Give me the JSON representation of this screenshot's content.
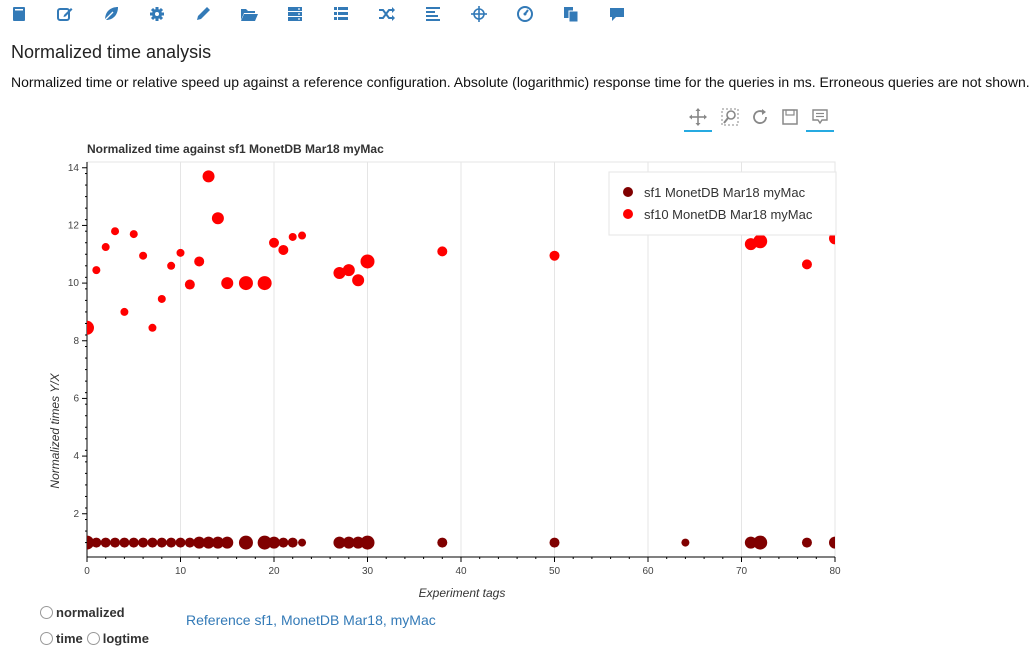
{
  "toolbar": {
    "icons": [
      "book-icon",
      "edit-icon",
      "leaf-icon",
      "cog-icon",
      "pencil-icon",
      "folder-open-icon",
      "server-icon",
      "list-icon",
      "shuffle-icon",
      "align-left-icon",
      "screenshot-icon",
      "dashboard-icon",
      "duplicate-icon",
      "comment-icon"
    ]
  },
  "page": {
    "title": "Normalized time analysis",
    "description": "Normalized time or relative speed up against a reference configuration. Absolute (logarithmic) response time for the queries in ms. Erroneous queries are not shown."
  },
  "plot_tools": [
    "pan-tool-icon",
    "box-zoom-tool-icon",
    "reset-tool-icon",
    "save-tool-icon",
    "hover-tool-icon"
  ],
  "colors": {
    "accent": "#337ab7",
    "series1": "#800000",
    "series2": "#ff0000",
    "active_tool": "#26aae1"
  },
  "chart_data": {
    "type": "scatter",
    "title": "Normalized time against sf1 MonetDB Mar18 myMac",
    "xlabel": "Experiment tags",
    "ylabel": "Normalized times Y/X",
    "xlim": [
      0,
      80
    ],
    "ylim": [
      0.5,
      14.2
    ],
    "xticks": [
      0,
      10,
      20,
      30,
      40,
      50,
      60,
      70,
      80
    ],
    "yticks": [
      2,
      4,
      6,
      8,
      10,
      12,
      14
    ],
    "grid": true,
    "legend_position": "top-right",
    "series": [
      {
        "name": "sf1 MonetDB Mar18 myMac",
        "color": "#800000",
        "points": [
          {
            "x": 0,
            "y": 1,
            "r": 7
          },
          {
            "x": 1,
            "y": 1,
            "r": 5
          },
          {
            "x": 2,
            "y": 1,
            "r": 5
          },
          {
            "x": 3,
            "y": 1,
            "r": 5
          },
          {
            "x": 4,
            "y": 1,
            "r": 5
          },
          {
            "x": 5,
            "y": 1,
            "r": 5
          },
          {
            "x": 6,
            "y": 1,
            "r": 5
          },
          {
            "x": 7,
            "y": 1,
            "r": 5
          },
          {
            "x": 8,
            "y": 1,
            "r": 5
          },
          {
            "x": 9,
            "y": 1,
            "r": 5
          },
          {
            "x": 10,
            "y": 1,
            "r": 5
          },
          {
            "x": 11,
            "y": 1,
            "r": 5
          },
          {
            "x": 12,
            "y": 1,
            "r": 6
          },
          {
            "x": 13,
            "y": 1,
            "r": 6
          },
          {
            "x": 14,
            "y": 1,
            "r": 6
          },
          {
            "x": 15,
            "y": 1,
            "r": 6
          },
          {
            "x": 17,
            "y": 1,
            "r": 7
          },
          {
            "x": 19,
            "y": 1,
            "r": 7
          },
          {
            "x": 20,
            "y": 1,
            "r": 6
          },
          {
            "x": 21,
            "y": 1,
            "r": 5
          },
          {
            "x": 22,
            "y": 1,
            "r": 5
          },
          {
            "x": 23,
            "y": 1,
            "r": 4
          },
          {
            "x": 27,
            "y": 1,
            "r": 6
          },
          {
            "x": 28,
            "y": 1,
            "r": 6
          },
          {
            "x": 29,
            "y": 1,
            "r": 6
          },
          {
            "x": 30,
            "y": 1,
            "r": 7
          },
          {
            "x": 38,
            "y": 1,
            "r": 5
          },
          {
            "x": 50,
            "y": 1,
            "r": 5
          },
          {
            "x": 64,
            "y": 1,
            "r": 4
          },
          {
            "x": 71,
            "y": 1,
            "r": 6
          },
          {
            "x": 72,
            "y": 1,
            "r": 7
          },
          {
            "x": 77,
            "y": 1,
            "r": 5
          },
          {
            "x": 80,
            "y": 1,
            "r": 6
          }
        ]
      },
      {
        "name": "sf10 MonetDB Mar18 myMac",
        "color": "#ff0000",
        "points": [
          {
            "x": 0,
            "y": 8.45,
            "r": 7
          },
          {
            "x": 1,
            "y": 10.45,
            "r": 4
          },
          {
            "x": 2,
            "y": 11.25,
            "r": 4
          },
          {
            "x": 3,
            "y": 11.8,
            "r": 4
          },
          {
            "x": 4,
            "y": 9.0,
            "r": 4
          },
          {
            "x": 5,
            "y": 11.7,
            "r": 4
          },
          {
            "x": 6,
            "y": 10.95,
            "r": 4
          },
          {
            "x": 7,
            "y": 8.45,
            "r": 4
          },
          {
            "x": 8,
            "y": 9.45,
            "r": 4
          },
          {
            "x": 9,
            "y": 10.6,
            "r": 4
          },
          {
            "x": 10,
            "y": 11.05,
            "r": 4
          },
          {
            "x": 11,
            "y": 9.95,
            "r": 5
          },
          {
            "x": 12,
            "y": 10.75,
            "r": 5
          },
          {
            "x": 13,
            "y": 13.7,
            "r": 6
          },
          {
            "x": 14,
            "y": 12.25,
            "r": 6
          },
          {
            "x": 15,
            "y": 10.0,
            "r": 6
          },
          {
            "x": 17,
            "y": 10.0,
            "r": 7
          },
          {
            "x": 19,
            "y": 10.0,
            "r": 7
          },
          {
            "x": 20,
            "y": 11.4,
            "r": 5
          },
          {
            "x": 21,
            "y": 11.15,
            "r": 5
          },
          {
            "x": 22,
            "y": 11.6,
            "r": 4
          },
          {
            "x": 23,
            "y": 11.65,
            "r": 4
          },
          {
            "x": 27,
            "y": 10.35,
            "r": 6
          },
          {
            "x": 28,
            "y": 10.45,
            "r": 6
          },
          {
            "x": 29,
            "y": 10.1,
            "r": 6
          },
          {
            "x": 30,
            "y": 10.75,
            "r": 7
          },
          {
            "x": 38,
            "y": 11.1,
            "r": 5
          },
          {
            "x": 50,
            "y": 10.95,
            "r": 5
          },
          {
            "x": 71,
            "y": 11.35,
            "r": 6
          },
          {
            "x": 72,
            "y": 11.45,
            "r": 7
          },
          {
            "x": 77,
            "y": 10.65,
            "r": 5
          },
          {
            "x": 80,
            "y": 11.55,
            "r": 6
          }
        ]
      }
    ]
  },
  "controls": {
    "normalized_label": "normalized",
    "time_label": "time",
    "logtime_label": "logtime"
  },
  "reference": {
    "label": "Reference sf1, MonetDB Mar18, myMac"
  }
}
